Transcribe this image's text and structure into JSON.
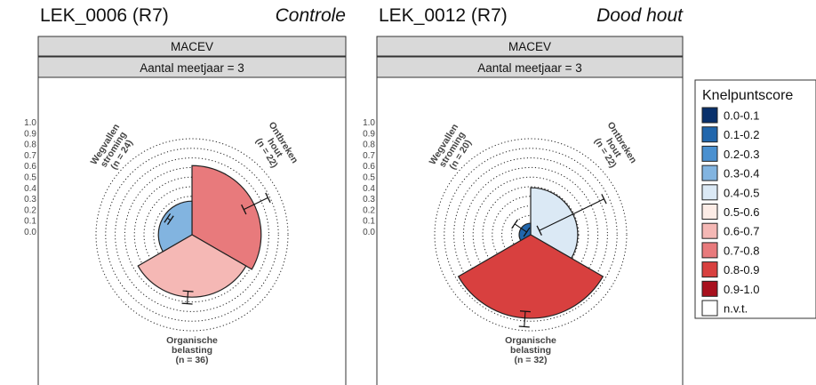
{
  "legend": {
    "title": "Knelpuntscore",
    "items": [
      {
        "label": "0.0-0.1",
        "color": "#08306b"
      },
      {
        "label": "0.1-0.2",
        "color": "#2166ac"
      },
      {
        "label": "0.2-0.3",
        "color": "#4a90d0"
      },
      {
        "label": "0.3-0.4",
        "color": "#82b4e0"
      },
      {
        "label": "0.4-0.5",
        "color": "#dbe9f5"
      },
      {
        "label": "0.5-0.6",
        "color": "#fcece6"
      },
      {
        "label": "0.6-0.7",
        "color": "#f5b8b5"
      },
      {
        "label": "0.7-0.8",
        "color": "#e87a7c"
      },
      {
        "label": "0.8-0.9",
        "color": "#d8403f"
      },
      {
        "label": "0.9-1.0",
        "color": "#a8101d"
      },
      {
        "label": "n.v.t.",
        "color": "#ffffff"
      }
    ]
  },
  "chart_data": [
    {
      "type": "polar-bar",
      "title": "LEK_0006 (R7)",
      "subtitle": "Controle",
      "strip_top": "MACEV",
      "strip_sub": "Aantal meetjaar = 3",
      "rlim": [
        0,
        1
      ],
      "r_ticks": [
        "1.0",
        "0.9",
        "0.8",
        "0.7",
        "0.6",
        "0.5",
        "0.4",
        "0.3",
        "0.2",
        "0.1",
        "0.0"
      ],
      "categories": [
        {
          "line1": "Ontbreken",
          "line2": "hout",
          "n": "(n = 22)",
          "value": 0.72,
          "err_low": 0.6,
          "err_high": 0.88,
          "color": "#e87a7c"
        },
        {
          "line1": "Organische",
          "line2": "belasting",
          "n": "(n = 36)",
          "value": 0.65,
          "err_low": 0.59,
          "err_high": 0.72,
          "color": "#f5b8b5"
        },
        {
          "line1": "Wegvallen",
          "line2": "stroming",
          "n": "(n = 24)",
          "value": 0.35,
          "err_low": 0.27,
          "err_high": 0.31,
          "color": "#82b4e0"
        }
      ]
    },
    {
      "type": "polar-bar",
      "title": "LEK_0012 (R7)",
      "subtitle": "Dood hout",
      "strip_top": "MACEV",
      "strip_sub": "Aantal meetjaar = 3",
      "rlim": [
        0,
        1
      ],
      "r_ticks": [
        "1.0",
        "0.9",
        "0.8",
        "0.7",
        "0.6",
        "0.5",
        "0.4",
        "0.3",
        "0.2",
        "0.1",
        "0.0"
      ],
      "categories": [
        {
          "line1": "Ontbreken",
          "line2": "hout",
          "n": "(n = 22)",
          "value": 0.49,
          "err_low": 0.1,
          "err_high": 0.85,
          "color": "#dbe9f5"
        },
        {
          "line1": "Organische",
          "line2": "belasting",
          "n": "(n = 32)",
          "value": 0.87,
          "err_low": 0.8,
          "err_high": 0.96,
          "color": "#d8403f"
        },
        {
          "line1": "Wegvallen",
          "line2": "stroming",
          "n": "(n = 20)",
          "value": 0.12,
          "err_low": 0.05,
          "err_high": 0.2,
          "color": "#2166ac"
        }
      ]
    }
  ]
}
